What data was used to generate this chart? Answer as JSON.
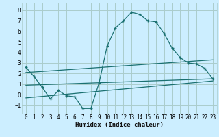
{
  "xlabel": "Humidex (Indice chaleur)",
  "xlim": [
    -0.5,
    23.5
  ],
  "ylim": [
    -1.8,
    8.7
  ],
  "yticks": [
    -1,
    0,
    1,
    2,
    3,
    4,
    5,
    6,
    7,
    8
  ],
  "xticks": [
    0,
    1,
    2,
    3,
    4,
    5,
    6,
    7,
    8,
    9,
    10,
    11,
    12,
    13,
    14,
    15,
    16,
    17,
    18,
    19,
    20,
    21,
    22,
    23
  ],
  "bg_color": "#cceeff",
  "grid_color": "#aacccc",
  "line_color": "#1a7070",
  "series1_x": [
    0,
    1,
    2,
    3,
    4,
    5,
    6,
    7,
    8,
    9,
    10,
    11,
    12,
    13,
    14,
    15,
    16,
    17,
    18,
    19,
    20,
    21,
    22,
    23
  ],
  "series1_y": [
    2.6,
    1.7,
    0.7,
    -0.4,
    0.4,
    -0.1,
    -0.2,
    -1.3,
    -1.3,
    1.1,
    4.6,
    6.3,
    7.0,
    7.8,
    7.6,
    7.0,
    6.9,
    5.8,
    4.4,
    3.5,
    3.0,
    2.9,
    2.5,
    1.5
  ],
  "series2_x": [
    0,
    23
  ],
  "series2_y": [
    2.1,
    3.3
  ],
  "series3_x": [
    0,
    23
  ],
  "series3_y": [
    0.9,
    1.5
  ],
  "series4_x": [
    0,
    23
  ],
  "series4_y": [
    -0.3,
    1.3
  ]
}
